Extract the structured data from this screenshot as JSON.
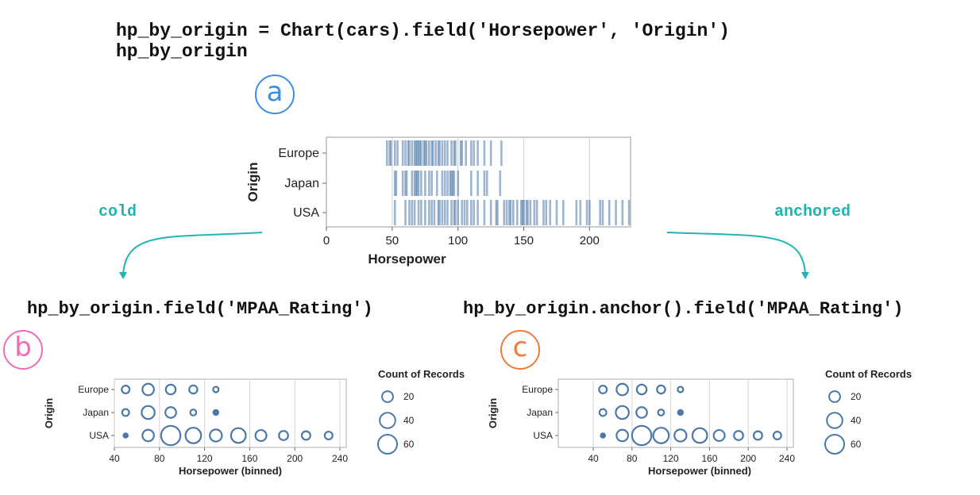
{
  "code": {
    "line1": "hp_by_origin = Chart(cars).field('Horsepower', 'Origin')",
    "line2": "hp_by_origin",
    "cold_code": "hp_by_origin.field('MPAA_Rating')",
    "anchored_code": "hp_by_origin.anchor().field('MPAA_Rating')"
  },
  "labels": {
    "a": "a",
    "b": "b",
    "c": "c",
    "cold": "cold",
    "anchored": "anchored"
  },
  "colors": {
    "a": "#3a8ee6",
    "b": "#f06bb5",
    "c": "#f07a3c",
    "arrow": "#1fb5b3",
    "mark": "#4c78a8"
  },
  "chart_data": [
    {
      "type": "strip",
      "title": "",
      "xlabel": "Horsepower",
      "ylabel": "Origin",
      "xlim": [
        0,
        230
      ],
      "xticks": [
        0,
        50,
        100,
        150,
        200
      ],
      "categories": [
        "Europe",
        "Japan",
        "USA"
      ],
      "series": [
        {
          "name": "Europe",
          "values": [
            46,
            48,
            49,
            52,
            54,
            58,
            60,
            62,
            63,
            65,
            67,
            68,
            69,
            70,
            71,
            72,
            74,
            75,
            76,
            78,
            80,
            81,
            83,
            85,
            86,
            88,
            90,
            92,
            95,
            97,
            98,
            102,
            103,
            106,
            110,
            112,
            115,
            120,
            125,
            133
          ]
        },
        {
          "name": "Japan",
          "values": [
            52,
            53,
            58,
            60,
            61,
            65,
            67,
            68,
            69,
            70,
            72,
            75,
            78,
            80,
            84,
            88,
            90,
            92,
            94,
            95,
            96,
            97,
            100,
            110,
            115,
            120,
            122,
            132
          ]
        },
        {
          "name": "USA",
          "values": [
            52,
            60,
            63,
            65,
            67,
            70,
            72,
            75,
            78,
            80,
            82,
            85,
            86,
            88,
            90,
            92,
            95,
            97,
            98,
            100,
            103,
            105,
            107,
            110,
            112,
            115,
            120,
            125,
            129,
            130,
            135,
            137,
            139,
            140,
            142,
            145,
            148,
            149,
            150,
            152,
            153,
            155,
            158,
            160,
            165,
            167,
            170,
            175,
            180,
            190,
            193,
            198,
            200,
            208,
            210,
            215,
            220,
            225,
            230
          ]
        }
      ]
    },
    {
      "type": "scatter",
      "title": "",
      "xlabel": "Horsepower (binned)",
      "ylabel": "Origin",
      "xlim": [
        40,
        240
      ],
      "xticks": [
        40,
        80,
        120,
        160,
        200,
        240
      ],
      "categories": [
        "Europe",
        "Japan",
        "USA"
      ],
      "legend": {
        "title": "Count of Records",
        "values": [
          20,
          40,
          60
        ]
      },
      "series": [
        {
          "name": "Europe",
          "x": [
            50,
            70,
            90,
            110,
            130
          ],
          "counts": [
            10,
            22,
            16,
            11,
            5
          ]
        },
        {
          "name": "Japan",
          "x": [
            50,
            70,
            90,
            110,
            130
          ],
          "counts": [
            8,
            28,
            19,
            6,
            4
          ]
        },
        {
          "name": "USA",
          "x": [
            50,
            70,
            90,
            110,
            150,
            170,
            190,
            210,
            230
          ],
          "counts": [
            3,
            22,
            62,
            40,
            36,
            20,
            14,
            12,
            10
          ],
          "extra_x": [
            130
          ],
          "extra_counts": [
            24
          ]
        }
      ]
    },
    {
      "type": "scatter",
      "title": "",
      "xlabel": "Horsepower (binned)",
      "ylabel": "Origin",
      "xlim": [
        0,
        240
      ],
      "xticks": [
        40,
        80,
        120,
        160,
        200,
        240
      ],
      "categories": [
        "Europe",
        "Japan",
        "USA"
      ],
      "legend": {
        "title": "Count of Records",
        "values": [
          20,
          40,
          60
        ]
      },
      "series": [
        {
          "name": "Europe",
          "x": [
            50,
            70,
            90,
            110,
            130
          ],
          "counts": [
            10,
            22,
            16,
            11,
            5
          ]
        },
        {
          "name": "Japan",
          "x": [
            50,
            70,
            90,
            110,
            130
          ],
          "counts": [
            8,
            28,
            19,
            6,
            4
          ]
        },
        {
          "name": "USA",
          "x": [
            50,
            70,
            90,
            110,
            130,
            150,
            170,
            190,
            210,
            230
          ],
          "counts": [
            3,
            22,
            62,
            40,
            24,
            36,
            20,
            14,
            12,
            10
          ]
        }
      ]
    }
  ]
}
